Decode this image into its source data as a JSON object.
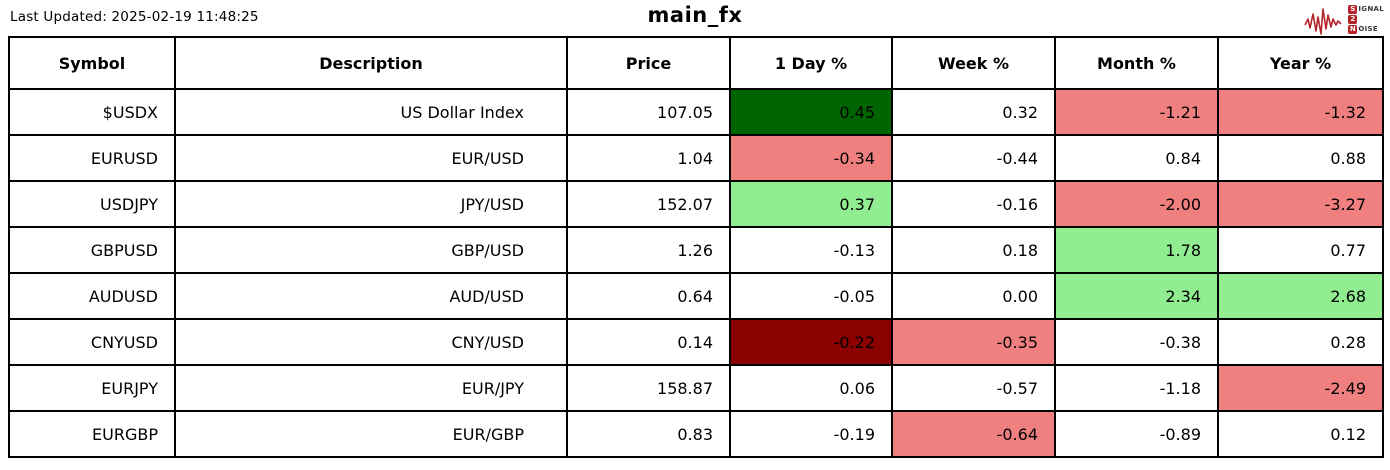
{
  "header": {
    "last_updated": "Last Updated: 2025-02-19 11:48:25",
    "title": "main_fx",
    "logo": {
      "lines": [
        {
          "badge": "S",
          "rest": "IGNAL"
        },
        {
          "badge": "2",
          "rest": ""
        },
        {
          "badge": "N",
          "rest": "OISE"
        }
      ]
    }
  },
  "colors": {
    "positive_strong": "#006400",
    "positive": "#90ee90",
    "negative": "#f08080",
    "negative_strong": "#8b0000",
    "logo_red": "#b5232a"
  },
  "table": {
    "columns": [
      "Symbol",
      "Description",
      "Price",
      "1 Day %",
      "Week %",
      "Month %",
      "Year %"
    ],
    "rows": [
      {
        "symbol": "$USDX",
        "description": "US Dollar Index",
        "price": "107.05",
        "changes": [
          {
            "value": "0.45",
            "tone": "positive_strong"
          },
          {
            "value": "0.32",
            "tone": null
          },
          {
            "value": "-1.21",
            "tone": "negative"
          },
          {
            "value": "-1.32",
            "tone": "negative"
          }
        ]
      },
      {
        "symbol": "EURUSD",
        "description": "EUR/USD",
        "price": "1.04",
        "changes": [
          {
            "value": "-0.34",
            "tone": "negative"
          },
          {
            "value": "-0.44",
            "tone": null
          },
          {
            "value": "0.84",
            "tone": null
          },
          {
            "value": "0.88",
            "tone": null
          }
        ]
      },
      {
        "symbol": "USDJPY",
        "description": "JPY/USD",
        "price": "152.07",
        "changes": [
          {
            "value": "0.37",
            "tone": "positive"
          },
          {
            "value": "-0.16",
            "tone": null
          },
          {
            "value": "-2.00",
            "tone": "negative"
          },
          {
            "value": "-3.27",
            "tone": "negative"
          }
        ]
      },
      {
        "symbol": "GBPUSD",
        "description": "GBP/USD",
        "price": "1.26",
        "changes": [
          {
            "value": "-0.13",
            "tone": null
          },
          {
            "value": "0.18",
            "tone": null
          },
          {
            "value": "1.78",
            "tone": "positive"
          },
          {
            "value": "0.77",
            "tone": null
          }
        ]
      },
      {
        "symbol": "AUDUSD",
        "description": "AUD/USD",
        "price": "0.64",
        "changes": [
          {
            "value": "-0.05",
            "tone": null
          },
          {
            "value": "0.00",
            "tone": null
          },
          {
            "value": "2.34",
            "tone": "positive"
          },
          {
            "value": "2.68",
            "tone": "positive"
          }
        ]
      },
      {
        "symbol": "CNYUSD",
        "description": "CNY/USD",
        "price": "0.14",
        "changes": [
          {
            "value": "-0.22",
            "tone": "negative_strong"
          },
          {
            "value": "-0.35",
            "tone": "negative"
          },
          {
            "value": "-0.38",
            "tone": null
          },
          {
            "value": "0.28",
            "tone": null
          }
        ]
      },
      {
        "symbol": "EURJPY",
        "description": "EUR/JPY",
        "price": "158.87",
        "changes": [
          {
            "value": "0.06",
            "tone": null
          },
          {
            "value": "-0.57",
            "tone": null
          },
          {
            "value": "-1.18",
            "tone": null
          },
          {
            "value": "-2.49",
            "tone": "negative"
          }
        ]
      },
      {
        "symbol": "EURGBP",
        "description": "EUR/GBP",
        "price": "0.83",
        "changes": [
          {
            "value": "-0.19",
            "tone": null
          },
          {
            "value": "-0.64",
            "tone": "negative"
          },
          {
            "value": "-0.89",
            "tone": null
          },
          {
            "value": "0.12",
            "tone": null
          }
        ]
      }
    ]
  }
}
